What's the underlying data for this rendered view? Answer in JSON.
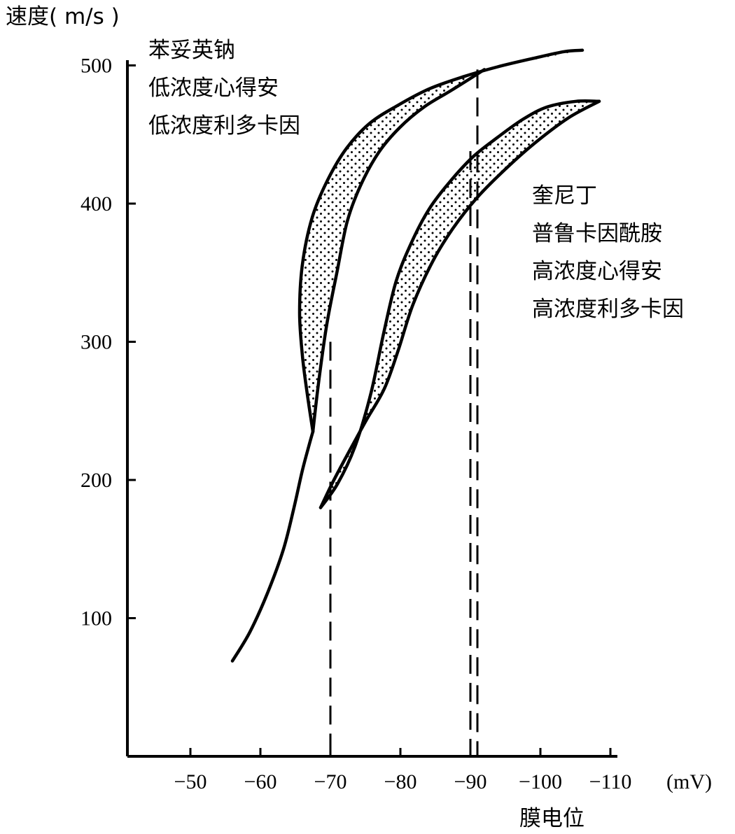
{
  "chart_data": {
    "type": "line",
    "title": "",
    "ylabel": "速度( m/s )",
    "xlabel": "膜电位",
    "x_unit": "(mV)",
    "ylim": [
      0,
      510
    ],
    "xlim": [
      -42,
      -110
    ],
    "grid": false,
    "y_ticks": [
      {
        "value": 100,
        "label": "100"
      },
      {
        "value": 200,
        "label": "200"
      },
      {
        "value": 300,
        "label": "300"
      },
      {
        "value": 400,
        "label": "400"
      },
      {
        "value": 500,
        "label": "500"
      }
    ],
    "x_ticks": [
      {
        "value": -50,
        "label": "−50"
      },
      {
        "value": -60,
        "label": "−60"
      },
      {
        "value": -70,
        "label": "−70"
      },
      {
        "value": -80,
        "label": "−80"
      },
      {
        "value": -90,
        "label": "−90"
      },
      {
        "value": -100,
        "label": "−100"
      },
      {
        "value": -110,
        "label": "−110"
      }
    ],
    "series": [
      {
        "name": "base curve",
        "x": [
          -56,
          -58.5,
          -61,
          -63.3,
          -64.8,
          -66,
          -67,
          -67.5
        ],
        "y": [
          69,
          90,
          118,
          150,
          180,
          207,
          226,
          235
        ]
      },
      {
        "name": "band 1 outer",
        "x": [
          -67.5,
          -66.7,
          -66,
          -65.6,
          -66,
          -67.4,
          -69.6,
          -72.3,
          -75.6,
          -79.6,
          -84.1,
          -89.1,
          -93.9,
          -98.9,
          -103.4,
          -106
        ],
        "y": [
          235,
          262,
          290,
          321,
          356,
          390,
          417,
          440,
          458,
          471,
          483,
          492,
          499,
          505,
          510,
          511
        ]
      },
      {
        "name": "band 1 inner",
        "x": [
          -67.5,
          -68.3,
          -69.5,
          -71,
          -72.4,
          -74.3,
          -76.9,
          -79.9,
          -83.4,
          -87.3,
          -92
        ],
        "y": [
          235,
          270,
          313,
          352,
          387,
          413,
          437,
          455,
          470,
          482,
          497
        ]
      },
      {
        "name": "band 2 outer",
        "x": [
          -68.6,
          -71,
          -73.5,
          -75.8,
          -77.6,
          -79.4,
          -81.6,
          -84.1,
          -87.1,
          -90.4,
          -93.9,
          -97.5,
          -101,
          -105.1,
          -108.4
        ],
        "y": [
          180,
          197,
          224,
          263,
          306,
          344,
          372,
          396,
          416,
          434,
          448,
          461,
          470,
          474,
          474
        ]
      },
      {
        "name": "band 2 inner",
        "x": [
          -68.6,
          -70.3,
          -72.5,
          -75.1,
          -77.7,
          -79.7,
          -81.8,
          -84.6,
          -87.5,
          -90.9,
          -94.8,
          -99,
          -104,
          -108.4
        ],
        "y": [
          180,
          198,
          219,
          243,
          266,
          294,
          327,
          358,
          382,
          404,
          424,
          443,
          462,
          474
        ]
      }
    ],
    "reference_lines": [
      {
        "x": -70,
        "y_top": 300,
        "style": "dashed"
      },
      {
        "x": -90,
        "y_top": 438,
        "style": "dashed"
      },
      {
        "x": -91,
        "y_top": 497,
        "style": "dashed"
      }
    ],
    "annotations": {
      "group_1": [
        "苯妥英钠",
        "低浓度心得安",
        "低浓度利多卡因"
      ],
      "group_2": [
        "奎尼丁",
        "普鲁卡因酰胺",
        "高浓度心得安",
        "高浓度利多卡因"
      ]
    },
    "colors": {
      "ink": "#000000",
      "background": "#ffffff"
    }
  }
}
